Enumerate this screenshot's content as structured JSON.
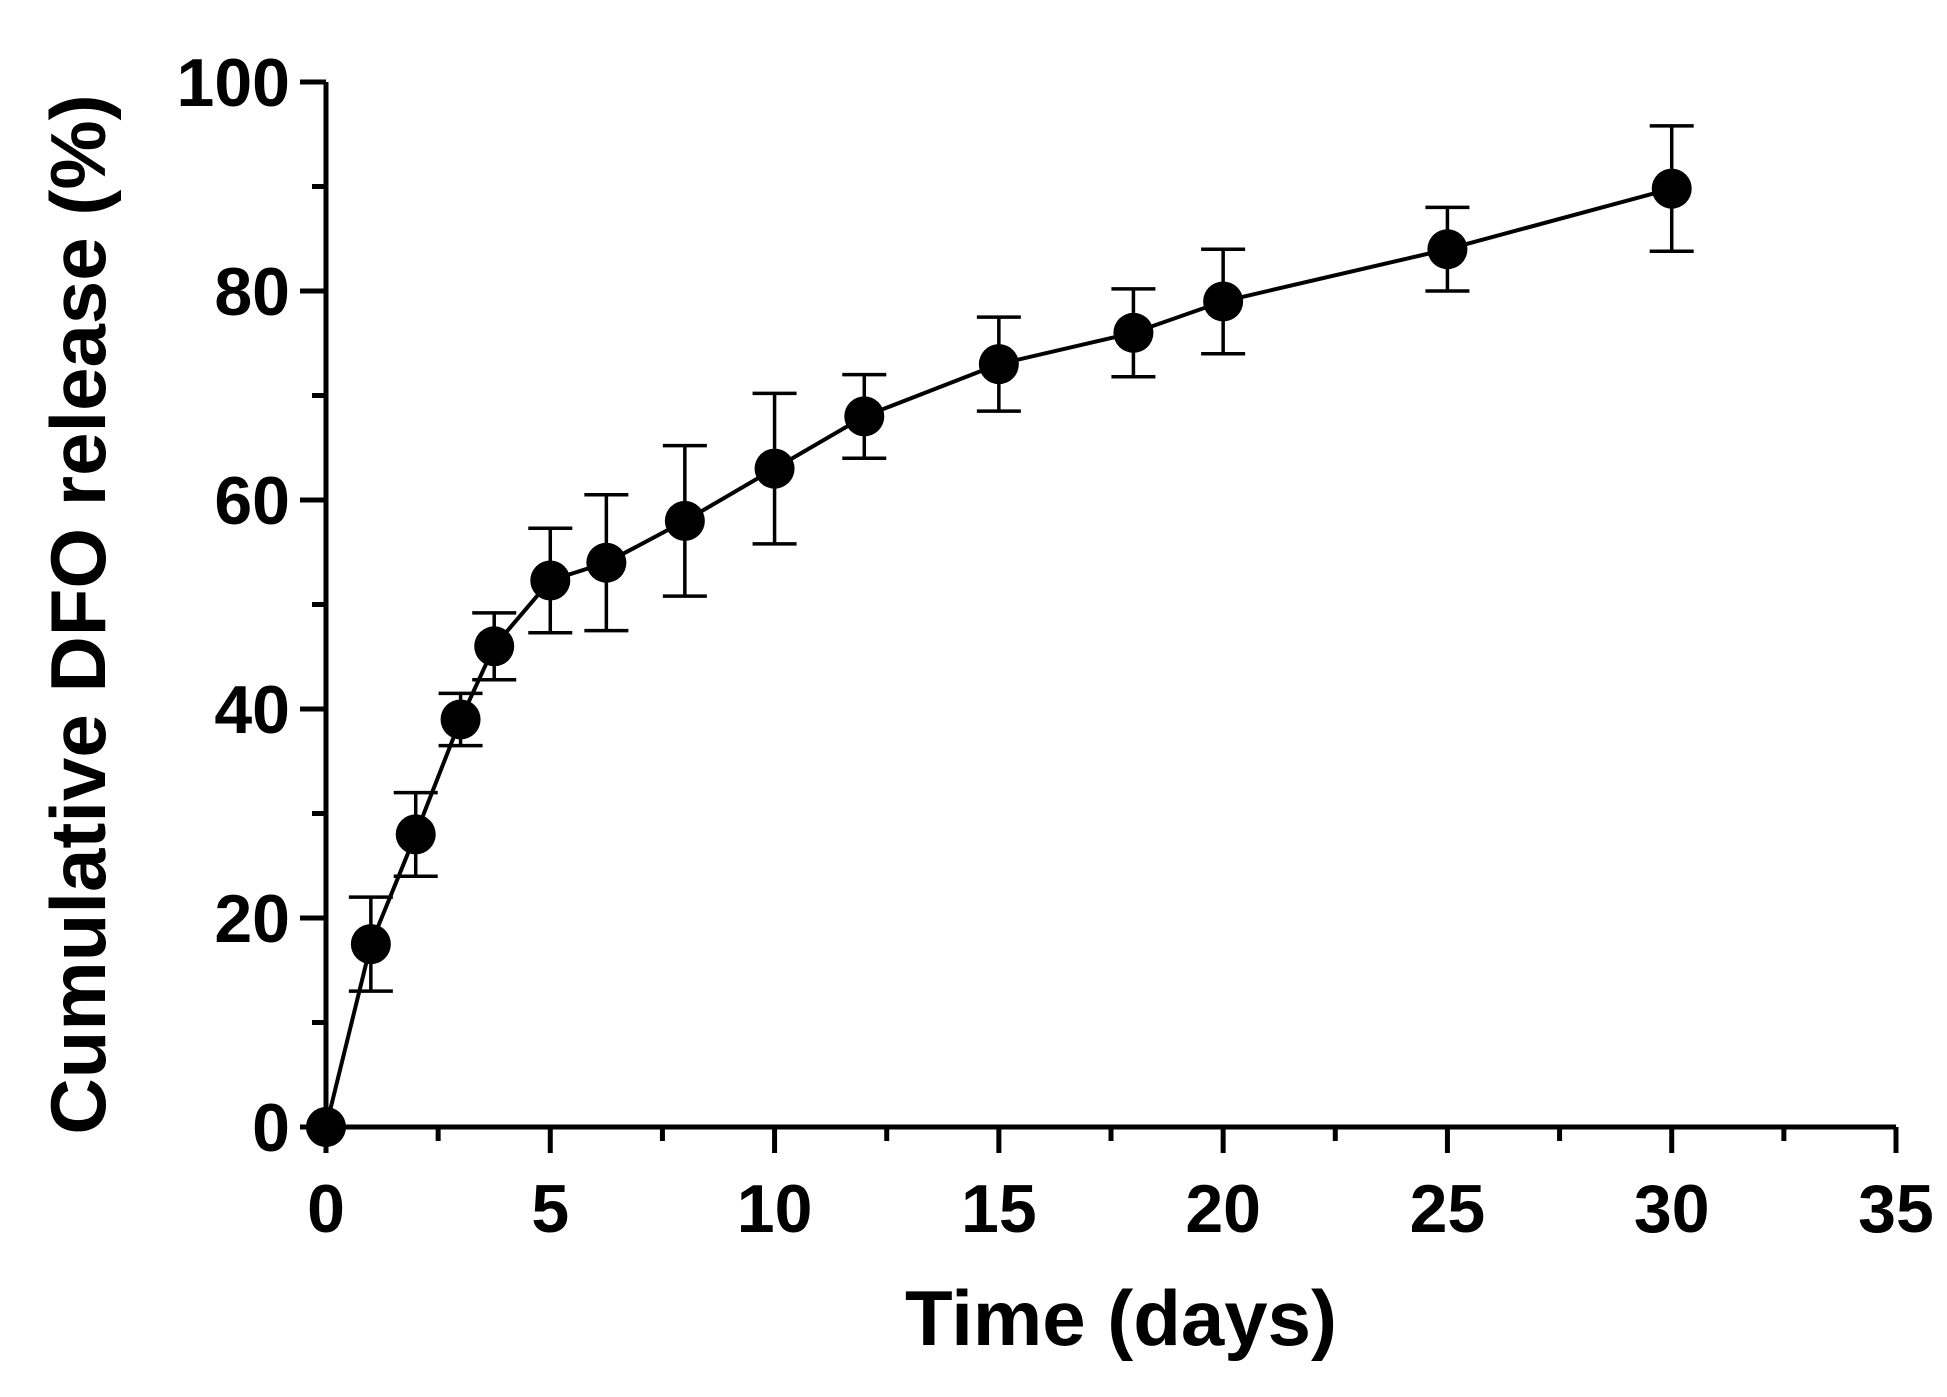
{
  "chart_data": {
    "type": "line",
    "title": "",
    "xlabel": "Time (days)",
    "ylabel": "Cumulative DFO release (%)",
    "xlim": [
      0,
      35
    ],
    "ylim": [
      0,
      100
    ],
    "xticks": [
      0,
      5,
      10,
      15,
      20,
      25,
      30,
      35
    ],
    "yticks": [
      0,
      20,
      40,
      60,
      80,
      100
    ],
    "x_tick_labels": [
      "0",
      "5",
      "10",
      "15",
      "20",
      "25",
      "30",
      "35"
    ],
    "y_tick_labels": [
      "0",
      "20",
      "40",
      "60",
      "80",
      "100"
    ],
    "grid": false,
    "legend": "none",
    "series": [
      {
        "name": "DFO release",
        "marker": "filled-circle",
        "color": "#000000",
        "x": [
          0,
          1,
          2,
          3,
          3.75,
          5,
          6.25,
          8,
          10,
          12,
          15,
          18,
          20,
          25,
          30
        ],
        "y": [
          0,
          17.5,
          28,
          39,
          46,
          52.3,
          54,
          58,
          63,
          68,
          73,
          76,
          79,
          84,
          89.8
        ],
        "err": [
          0,
          4.5,
          4,
          2.5,
          3.2,
          5,
          6.5,
          7.2,
          7.2,
          4,
          4.5,
          4.2,
          5,
          4,
          6
        ]
      }
    ]
  }
}
